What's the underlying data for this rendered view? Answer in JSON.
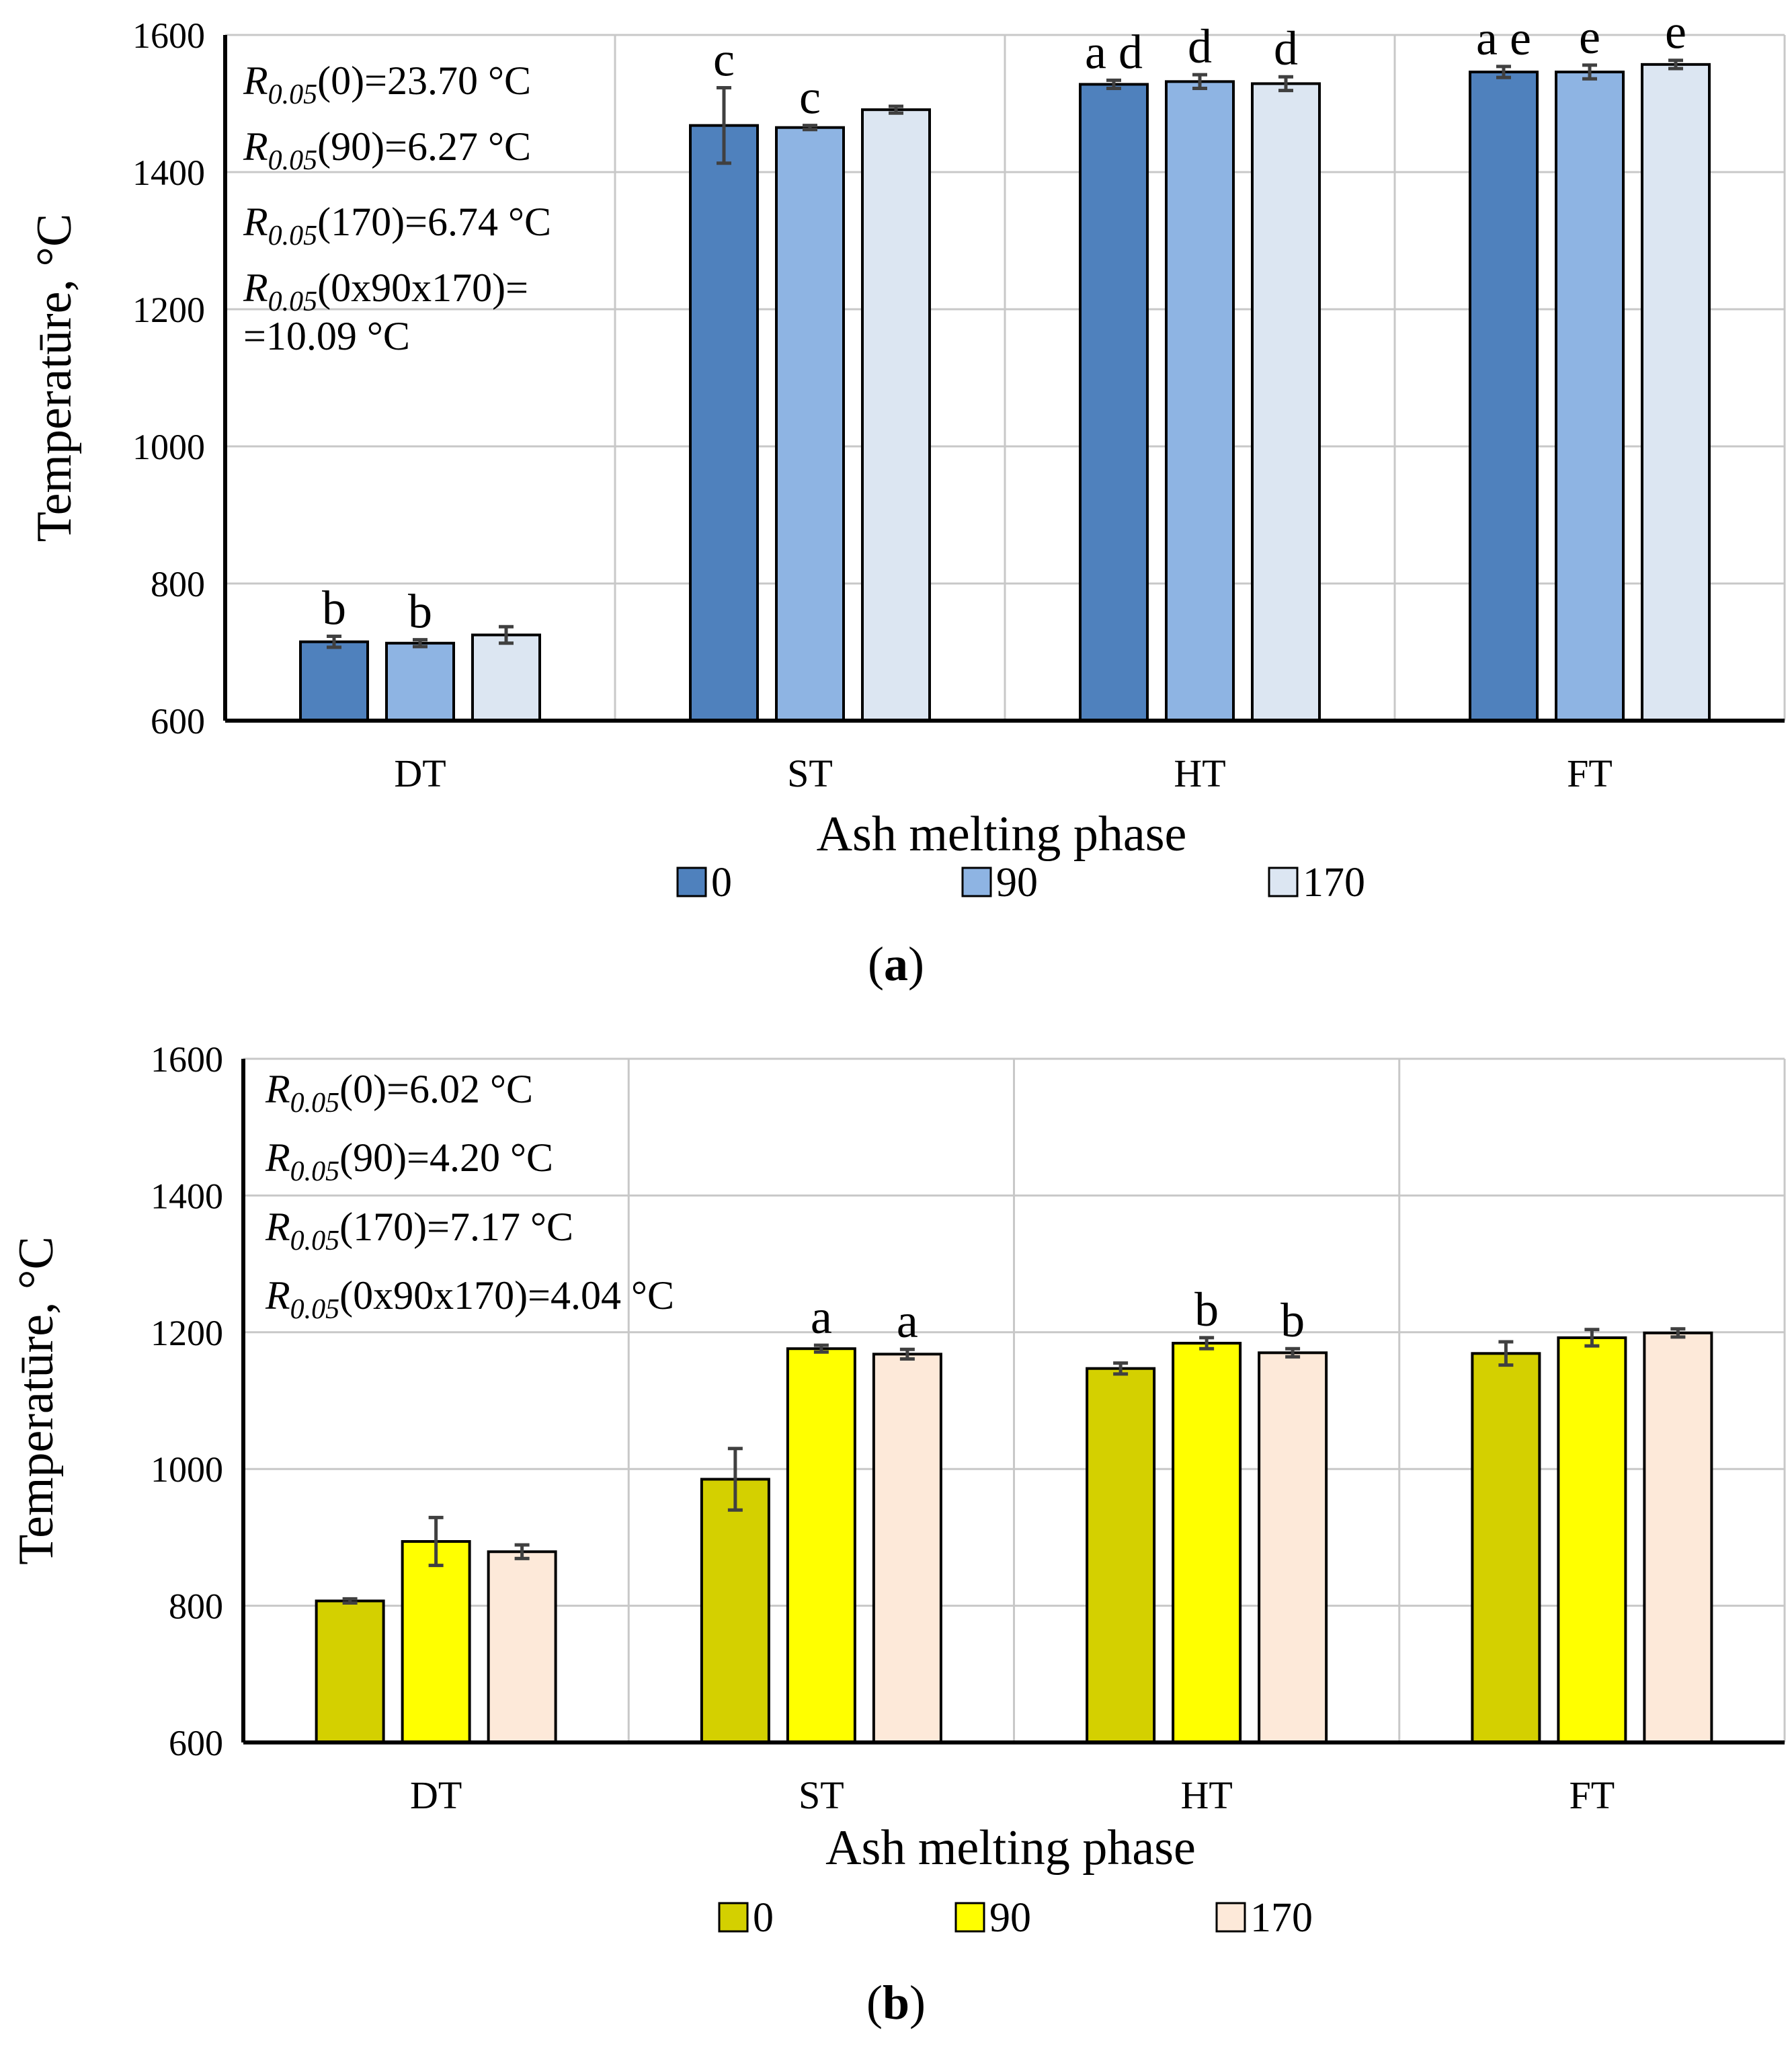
{
  "chart_data": [
    {
      "type": "bar",
      "panel_label": "a",
      "categories": [
        "DT",
        "ST",
        "HT",
        "FT"
      ],
      "xlabel": "Ash melting phase",
      "ylabel": "Temperatūre, °C",
      "ylim": [
        600,
        1600
      ],
      "yticks": [
        600,
        800,
        1000,
        1200,
        1400,
        1600
      ],
      "grid": true,
      "legend_position": "bottom-center",
      "series": [
        {
          "name": "0",
          "color": "#4F81BD",
          "values": [
            715,
            1468,
            1528,
            1546
          ],
          "errors": [
            8,
            55,
            6,
            8
          ],
          "letters": [
            "b",
            "c",
            "a d",
            "a e"
          ]
        },
        {
          "name": "90",
          "color": "#8EB4E3",
          "values": [
            713,
            1465,
            1532,
            1546
          ],
          "errors": [
            5,
            3,
            10,
            10
          ],
          "letters": [
            "b",
            "c",
            "d",
            "e"
          ]
        },
        {
          "name": "170",
          "color": "#DCE6F2",
          "values": [
            725,
            1491,
            1529,
            1557
          ],
          "errors": [
            12,
            5,
            10,
            6
          ],
          "letters": [
            "",
            "",
            "d",
            "e"
          ]
        }
      ],
      "annotations": [
        {
          "prefix": "R",
          "sub": "0.05",
          "rest": "(0)=23.70 °C"
        },
        {
          "prefix": "R",
          "sub": "0.05",
          "rest": "(90)=6.27 °C"
        },
        {
          "prefix": "R",
          "sub": "0.05",
          "rest": "(170)=6.74 °C"
        },
        {
          "prefix": "R",
          "sub": "0.05",
          "rest": "(0x90x170)="
        },
        {
          "prefix": "",
          "sub": "",
          "rest": "=10.09 °C"
        }
      ]
    },
    {
      "type": "bar",
      "panel_label": "b",
      "categories": [
        "DT",
        "ST",
        "HT",
        "FT"
      ],
      "xlabel": "Ash melting phase",
      "ylabel": "Temperatūre, °C",
      "ylim": [
        600,
        1600
      ],
      "yticks": [
        600,
        800,
        1000,
        1200,
        1400,
        1600
      ],
      "grid": true,
      "legend_position": "bottom-center",
      "series": [
        {
          "name": "0",
          "color": "#D4D000",
          "values": [
            807,
            985,
            1147,
            1169
          ],
          "errors": [
            3,
            45,
            8,
            17
          ],
          "letters": [
            "",
            "",
            "",
            ""
          ]
        },
        {
          "name": "90",
          "color": "#FFFF00",
          "values": [
            894,
            1176,
            1184,
            1192
          ],
          "errors": [
            35,
            5,
            8,
            12
          ],
          "letters": [
            "",
            "a",
            "b",
            ""
          ]
        },
        {
          "name": "170",
          "color": "#FDE9D9",
          "values": [
            879,
            1168,
            1170,
            1199
          ],
          "errors": [
            10,
            7,
            6,
            6
          ],
          "letters": [
            "",
            "a",
            "b",
            ""
          ]
        }
      ],
      "annotations": [
        {
          "prefix": "R",
          "sub": "0.05",
          "rest": "(0)=6.02 °C"
        },
        {
          "prefix": "R",
          "sub": "0.05",
          "rest": "(90)=4.20 °C"
        },
        {
          "prefix": "R",
          "sub": "0.05",
          "rest": "(170)=7.17 °C"
        },
        {
          "prefix": "R",
          "sub": "0.05",
          "rest": "(0x90x170)=4.04 °C"
        }
      ]
    }
  ]
}
